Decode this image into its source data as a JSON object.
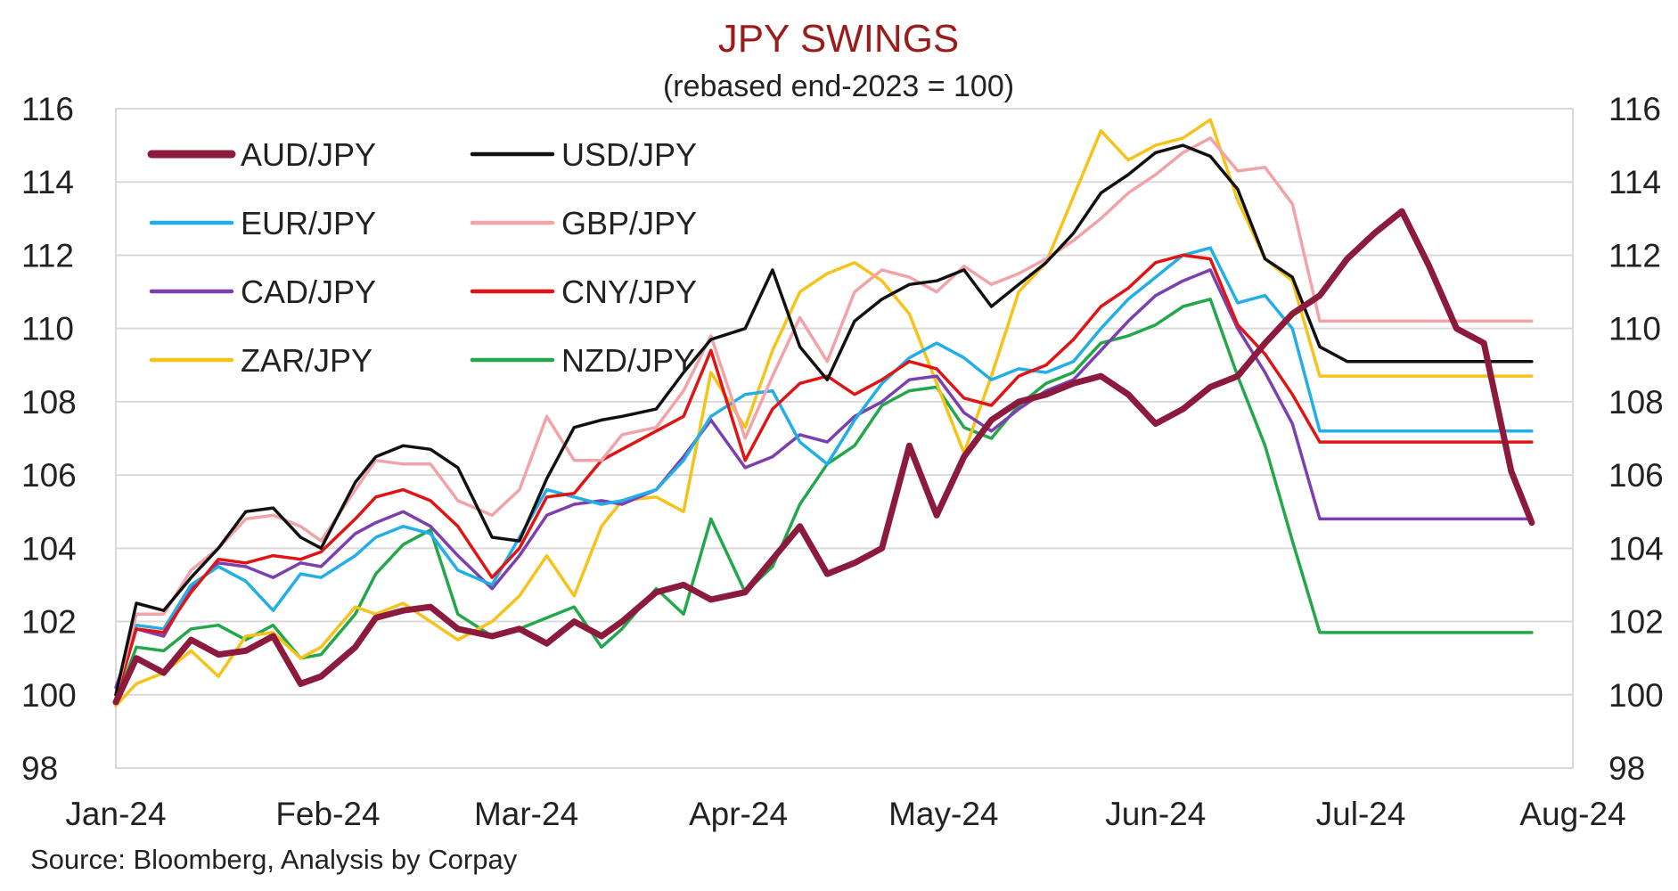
{
  "chart_data": {
    "type": "line",
    "title": "JPY SWINGS",
    "subtitle": "(rebased end-2023 = 100)",
    "source": "Source: Bloomberg, Analysis by Corpay",
    "ylim": [
      98,
      116
    ],
    "yticks": [
      "98",
      "100",
      "102",
      "104",
      "106",
      "108",
      "110",
      "112",
      "114",
      "116"
    ],
    "x_tick_labels": [
      "Jan-24",
      "Feb-24",
      "Mar-24",
      "Apr-24",
      "May-24",
      "Jun-24",
      "Jul-24",
      "Aug-24"
    ],
    "x_tick_dates": [
      "2024-01-01",
      "2024-02-01",
      "2024-03-01",
      "2024-04-01",
      "2024-05-01",
      "2024-06-01",
      "2024-07-01",
      "2024-08-01"
    ],
    "xlim": [
      "2024-01-01",
      "2024-08-01"
    ],
    "grid": true,
    "legend_position": "top-left",
    "series": [
      {
        "name": "AUD/JPY",
        "color": "#8b1a3c",
        "width": 7,
        "x": [
          "2024-01-01",
          "2024-01-04",
          "2024-01-08",
          "2024-01-12",
          "2024-01-16",
          "2024-01-20",
          "2024-01-24",
          "2024-01-28",
          "2024-01-31",
          "2024-02-05",
          "2024-02-08",
          "2024-02-12",
          "2024-02-16",
          "2024-02-20",
          "2024-02-25",
          "2024-02-29",
          "2024-03-04",
          "2024-03-08",
          "2024-03-12",
          "2024-03-15",
          "2024-03-20",
          "2024-03-24",
          "2024-03-28",
          "2024-04-02",
          "2024-04-06",
          "2024-04-10",
          "2024-04-14",
          "2024-04-18",
          "2024-04-22",
          "2024-04-26",
          "2024-04-30",
          "2024-05-04",
          "2024-05-08",
          "2024-05-12",
          "2024-05-16",
          "2024-05-20",
          "2024-05-24",
          "2024-05-28",
          "2024-06-01",
          "2024-06-05",
          "2024-06-09",
          "2024-06-13",
          "2024-06-17",
          "2024-06-21",
          "2024-06-25",
          "2024-06-29",
          "2024-07-03",
          "2024-07-07",
          "2024-07-11",
          "2024-07-15",
          "2024-07-19",
          "2024-07-23",
          "2024-07-26"
        ],
        "y": [
          99.8,
          101.0,
          100.6,
          101.5,
          101.1,
          101.2,
          101.6,
          100.3,
          100.5,
          101.3,
          102.1,
          102.3,
          102.4,
          101.8,
          101.6,
          101.8,
          101.4,
          102.0,
          101.6,
          102.0,
          102.8,
          103.0,
          102.6,
          102.8,
          103.7,
          104.6,
          103.3,
          103.6,
          104.0,
          106.8,
          104.9,
          106.5,
          107.5,
          108.0,
          108.2,
          108.5,
          108.7,
          108.2,
          107.4,
          107.8,
          108.4,
          108.7,
          109.6,
          110.4,
          110.9,
          111.9,
          112.6,
          113.2,
          111.7,
          110.0,
          109.6,
          106.1,
          104.7
        ]
      },
      {
        "name": "USD/JPY",
        "color": "#111111",
        "width": 3.5,
        "x": [
          "2024-01-01",
          "2024-01-04",
          "2024-01-08",
          "2024-01-12",
          "2024-01-16",
          "2024-01-20",
          "2024-01-24",
          "2024-01-28",
          "2024-01-31",
          "2024-02-05",
          "2024-02-08",
          "2024-02-12",
          "2024-02-16",
          "2024-02-20",
          "2024-02-25",
          "2024-02-29",
          "2024-03-04",
          "2024-03-08",
          "2024-03-12",
          "2024-03-15",
          "2024-03-20",
          "2024-03-24",
          "2024-03-28",
          "2024-04-02",
          "2024-04-06",
          "2024-04-10",
          "2024-04-14",
          "2024-04-18",
          "2024-04-22",
          "2024-04-26",
          "2024-04-30",
          "2024-05-04",
          "2024-05-08",
          "2024-05-12",
          "2024-05-16",
          "2024-05-20",
          "2024-05-24",
          "2024-05-28",
          "2024-06-01",
          "2024-06-05",
          "2024-06-09",
          "2024-06-13",
          "2024-06-17",
          "2024-06-21",
          "2024-06-25",
          "2024-06-29",
          "2024-07-03",
          "2024-07-07",
          "2024-07-11",
          "2024-07-15",
          "2024-07-19",
          "2024-07-23",
          "2024-07-26"
        ],
        "y": [
          100.0,
          102.5,
          102.3,
          103.2,
          104.0,
          105.0,
          105.1,
          104.3,
          104.0,
          105.8,
          106.5,
          106.8,
          106.7,
          106.2,
          104.3,
          104.2,
          105.9,
          107.3,
          107.5,
          107.6,
          107.8,
          108.8,
          109.7,
          110.0,
          111.6,
          109.5,
          108.6,
          110.2,
          110.8,
          111.2,
          111.3,
          111.6,
          110.6,
          111.2,
          111.8,
          112.6,
          113.7,
          114.2,
          114.8,
          115.0,
          114.7,
          113.8,
          111.9,
          111.4,
          109.5,
          109.1,
          109.1,
          109.1,
          109.1,
          109.1,
          109.1,
          109.1,
          109.1
        ]
      },
      {
        "name": "EUR/JPY",
        "color": "#22aee6",
        "width": 3.5,
        "x": [
          "2024-01-01",
          "2024-01-04",
          "2024-01-08",
          "2024-01-12",
          "2024-01-16",
          "2024-01-20",
          "2024-01-24",
          "2024-01-28",
          "2024-01-31",
          "2024-02-05",
          "2024-02-08",
          "2024-02-12",
          "2024-02-16",
          "2024-02-20",
          "2024-02-25",
          "2024-02-29",
          "2024-03-04",
          "2024-03-08",
          "2024-03-12",
          "2024-03-15",
          "2024-03-20",
          "2024-03-24",
          "2024-03-28",
          "2024-04-02",
          "2024-04-06",
          "2024-04-10",
          "2024-04-14",
          "2024-04-18",
          "2024-04-22",
          "2024-04-26",
          "2024-04-30",
          "2024-05-04",
          "2024-05-08",
          "2024-05-12",
          "2024-05-16",
          "2024-05-20",
          "2024-05-24",
          "2024-05-28",
          "2024-06-01",
          "2024-06-05",
          "2024-06-09",
          "2024-06-13",
          "2024-06-17",
          "2024-06-21",
          "2024-06-25",
          "2024-06-29",
          "2024-07-03",
          "2024-07-07",
          "2024-07-11",
          "2024-07-15",
          "2024-07-19",
          "2024-07-23",
          "2024-07-26"
        ],
        "y": [
          100.0,
          101.9,
          101.8,
          103.0,
          103.5,
          103.1,
          102.3,
          103.3,
          103.2,
          103.8,
          104.3,
          104.6,
          104.4,
          103.4,
          103.0,
          104.3,
          105.6,
          105.4,
          105.2,
          105.3,
          105.6,
          106.4,
          107.6,
          108.2,
          108.3,
          106.9,
          106.3,
          107.5,
          108.5,
          109.2,
          109.6,
          109.2,
          108.6,
          108.9,
          108.8,
          109.1,
          110.0,
          110.8,
          111.4,
          112.0,
          112.2,
          110.7,
          110.9,
          110.0,
          107.2,
          107.2,
          107.2,
          107.2,
          107.2,
          107.2,
          107.2,
          107.2,
          107.2
        ]
      },
      {
        "name": "GBP/JPY",
        "color": "#f2a3a8",
        "width": 3.5,
        "x": [
          "2024-01-01",
          "2024-01-04",
          "2024-01-08",
          "2024-01-12",
          "2024-01-16",
          "2024-01-20",
          "2024-01-24",
          "2024-01-28",
          "2024-01-31",
          "2024-02-05",
          "2024-02-08",
          "2024-02-12",
          "2024-02-16",
          "2024-02-20",
          "2024-02-25",
          "2024-02-29",
          "2024-03-04",
          "2024-03-08",
          "2024-03-12",
          "2024-03-15",
          "2024-03-20",
          "2024-03-24",
          "2024-03-28",
          "2024-04-02",
          "2024-04-06",
          "2024-04-10",
          "2024-04-14",
          "2024-04-18",
          "2024-04-22",
          "2024-04-26",
          "2024-04-30",
          "2024-05-04",
          "2024-05-08",
          "2024-05-12",
          "2024-05-16",
          "2024-05-20",
          "2024-05-24",
          "2024-05-28",
          "2024-06-01",
          "2024-06-05",
          "2024-06-09",
          "2024-06-13",
          "2024-06-17",
          "2024-06-21",
          "2024-06-25",
          "2024-06-29",
          "2024-07-03",
          "2024-07-07",
          "2024-07-11",
          "2024-07-15",
          "2024-07-19",
          "2024-07-23",
          "2024-07-26"
        ],
        "y": [
          100.0,
          102.2,
          102.2,
          103.4,
          104.0,
          104.8,
          104.9,
          104.6,
          104.2,
          105.6,
          106.4,
          106.3,
          106.3,
          105.3,
          104.9,
          105.6,
          107.6,
          106.4,
          106.4,
          107.1,
          107.3,
          108.3,
          109.8,
          107.0,
          108.7,
          110.3,
          109.1,
          111.0,
          111.6,
          111.4,
          111.0,
          111.7,
          111.2,
          111.5,
          111.9,
          112.4,
          113.0,
          113.7,
          114.2,
          114.8,
          115.2,
          114.3,
          114.4,
          113.4,
          110.2,
          110.2,
          110.2,
          110.2,
          110.2,
          110.2,
          110.2,
          110.2,
          110.2
        ]
      },
      {
        "name": "CAD/JPY",
        "color": "#7b3fb0",
        "width": 3.5,
        "x": [
          "2024-01-01",
          "2024-01-04",
          "2024-01-08",
          "2024-01-12",
          "2024-01-16",
          "2024-01-20",
          "2024-01-24",
          "2024-01-28",
          "2024-01-31",
          "2024-02-05",
          "2024-02-08",
          "2024-02-12",
          "2024-02-16",
          "2024-02-20",
          "2024-02-25",
          "2024-02-29",
          "2024-03-04",
          "2024-03-08",
          "2024-03-12",
          "2024-03-15",
          "2024-03-20",
          "2024-03-24",
          "2024-03-28",
          "2024-04-02",
          "2024-04-06",
          "2024-04-10",
          "2024-04-14",
          "2024-04-18",
          "2024-04-22",
          "2024-04-26",
          "2024-04-30",
          "2024-05-04",
          "2024-05-08",
          "2024-05-12",
          "2024-05-16",
          "2024-05-20",
          "2024-05-24",
          "2024-05-28",
          "2024-06-01",
          "2024-06-05",
          "2024-06-09",
          "2024-06-13",
          "2024-06-17",
          "2024-06-21",
          "2024-06-25",
          "2024-06-29",
          "2024-07-03",
          "2024-07-07",
          "2024-07-11",
          "2024-07-15",
          "2024-07-19",
          "2024-07-23",
          "2024-07-26"
        ],
        "y": [
          100.2,
          101.8,
          101.6,
          102.9,
          103.6,
          103.5,
          103.2,
          103.6,
          103.5,
          104.4,
          104.7,
          105.0,
          104.6,
          103.8,
          102.9,
          103.8,
          104.9,
          105.2,
          105.3,
          105.2,
          105.6,
          106.5,
          107.5,
          106.2,
          106.5,
          107.1,
          106.9,
          107.6,
          108.0,
          108.6,
          108.7,
          107.7,
          107.2,
          107.8,
          108.3,
          108.6,
          109.4,
          110.2,
          110.9,
          111.3,
          111.6,
          110.0,
          108.8,
          107.4,
          104.8,
          104.8,
          104.8,
          104.8,
          104.8,
          104.8,
          104.8,
          104.8,
          104.8
        ]
      },
      {
        "name": "CNY/JPY",
        "color": "#e01414",
        "width": 3.5,
        "x": [
          "2024-01-01",
          "2024-01-04",
          "2024-01-08",
          "2024-01-12",
          "2024-01-16",
          "2024-01-20",
          "2024-01-24",
          "2024-01-28",
          "2024-01-31",
          "2024-02-05",
          "2024-02-08",
          "2024-02-12",
          "2024-02-16",
          "2024-02-20",
          "2024-02-25",
          "2024-02-29",
          "2024-03-04",
          "2024-03-08",
          "2024-03-12",
          "2024-03-15",
          "2024-03-20",
          "2024-03-24",
          "2024-03-28",
          "2024-04-02",
          "2024-04-06",
          "2024-04-10",
          "2024-04-14",
          "2024-04-18",
          "2024-04-22",
          "2024-04-26",
          "2024-04-30",
          "2024-05-04",
          "2024-05-08",
          "2024-05-12",
          "2024-05-16",
          "2024-05-20",
          "2024-05-24",
          "2024-05-28",
          "2024-06-01",
          "2024-06-05",
          "2024-06-09",
          "2024-06-13",
          "2024-06-17",
          "2024-06-21",
          "2024-06-25",
          "2024-06-29",
          "2024-07-03",
          "2024-07-07",
          "2024-07-11",
          "2024-07-15",
          "2024-07-19",
          "2024-07-23",
          "2024-07-26"
        ],
        "y": [
          99.9,
          101.8,
          101.7,
          102.8,
          103.7,
          103.6,
          103.8,
          103.7,
          103.9,
          104.8,
          105.4,
          105.6,
          105.3,
          104.6,
          103.2,
          104.0,
          105.4,
          105.5,
          106.4,
          106.7,
          107.2,
          107.6,
          109.4,
          106.4,
          107.8,
          108.5,
          108.7,
          108.2,
          108.6,
          109.1,
          108.9,
          108.1,
          107.9,
          108.7,
          109.0,
          109.7,
          110.6,
          111.1,
          111.8,
          112.0,
          111.9,
          110.1,
          109.3,
          108.2,
          106.9,
          106.9,
          106.9,
          106.9,
          106.9,
          106.9,
          106.9,
          106.9,
          106.9
        ]
      },
      {
        "name": "ZAR/JPY",
        "color": "#f5c319",
        "width": 3.5,
        "x": [
          "2024-01-01",
          "2024-01-04",
          "2024-01-08",
          "2024-01-12",
          "2024-01-16",
          "2024-01-20",
          "2024-01-24",
          "2024-01-28",
          "2024-01-31",
          "2024-02-05",
          "2024-02-08",
          "2024-02-12",
          "2024-02-16",
          "2024-02-20",
          "2024-02-25",
          "2024-02-29",
          "2024-03-04",
          "2024-03-08",
          "2024-03-12",
          "2024-03-15",
          "2024-03-20",
          "2024-03-24",
          "2024-03-28",
          "2024-04-02",
          "2024-04-06",
          "2024-04-10",
          "2024-04-14",
          "2024-04-18",
          "2024-04-22",
          "2024-04-26",
          "2024-04-30",
          "2024-05-04",
          "2024-05-08",
          "2024-05-12",
          "2024-05-16",
          "2024-05-20",
          "2024-05-24",
          "2024-05-28",
          "2024-06-01",
          "2024-06-05",
          "2024-06-09",
          "2024-06-13",
          "2024-06-17",
          "2024-06-21",
          "2024-06-25",
          "2024-06-29",
          "2024-07-03",
          "2024-07-07",
          "2024-07-11",
          "2024-07-15",
          "2024-07-19",
          "2024-07-23",
          "2024-07-26"
        ],
        "y": [
          99.7,
          100.3,
          100.6,
          101.2,
          100.5,
          101.6,
          101.7,
          101.0,
          101.3,
          102.4,
          102.2,
          102.5,
          102.0,
          101.5,
          102.0,
          102.7,
          103.8,
          102.7,
          104.6,
          105.3,
          105.4,
          105.0,
          108.8,
          107.3,
          109.4,
          111.0,
          111.5,
          111.8,
          111.3,
          110.4,
          108.5,
          106.6,
          108.7,
          111.0,
          111.8,
          113.6,
          115.4,
          114.6,
          115.0,
          115.2,
          115.7,
          113.5,
          111.9,
          111.3,
          108.7,
          108.7,
          108.7,
          108.7,
          108.7,
          108.7,
          108.7,
          108.7,
          108.7
        ]
      },
      {
        "name": "NZD/JPY",
        "color": "#22a84a",
        "width": 3.5,
        "x": [
          "2024-01-01",
          "2024-01-04",
          "2024-01-08",
          "2024-01-12",
          "2024-01-16",
          "2024-01-20",
          "2024-01-24",
          "2024-01-28",
          "2024-01-31",
          "2024-02-05",
          "2024-02-08",
          "2024-02-12",
          "2024-02-16",
          "2024-02-20",
          "2024-02-25",
          "2024-02-29",
          "2024-03-04",
          "2024-03-08",
          "2024-03-12",
          "2024-03-15",
          "2024-03-20",
          "2024-03-24",
          "2024-03-28",
          "2024-04-02",
          "2024-04-06",
          "2024-04-10",
          "2024-04-14",
          "2024-04-18",
          "2024-04-22",
          "2024-04-26",
          "2024-04-30",
          "2024-05-04",
          "2024-05-08",
          "2024-05-12",
          "2024-05-16",
          "2024-05-20",
          "2024-05-24",
          "2024-05-28",
          "2024-06-01",
          "2024-06-05",
          "2024-06-09",
          "2024-06-13",
          "2024-06-17",
          "2024-06-21",
          "2024-06-25",
          "2024-06-29",
          "2024-07-03",
          "2024-07-07",
          "2024-07-11",
          "2024-07-15",
          "2024-07-19",
          "2024-07-23",
          "2024-07-26"
        ],
        "y": [
          99.8,
          101.3,
          101.2,
          101.8,
          101.9,
          101.5,
          101.9,
          101.0,
          101.1,
          102.2,
          103.3,
          104.1,
          104.5,
          102.2,
          101.6,
          101.8,
          102.1,
          102.4,
          101.3,
          101.8,
          102.9,
          102.2,
          104.8,
          102.8,
          103.5,
          105.2,
          106.3,
          106.8,
          107.9,
          108.3,
          108.4,
          107.3,
          107.0,
          107.9,
          108.5,
          108.8,
          109.6,
          109.8,
          110.1,
          110.6,
          110.8,
          108.7,
          106.8,
          104.2,
          101.7,
          101.7,
          101.7,
          101.7,
          101.7,
          101.7,
          101.7,
          101.7,
          101.7
        ]
      }
    ]
  }
}
